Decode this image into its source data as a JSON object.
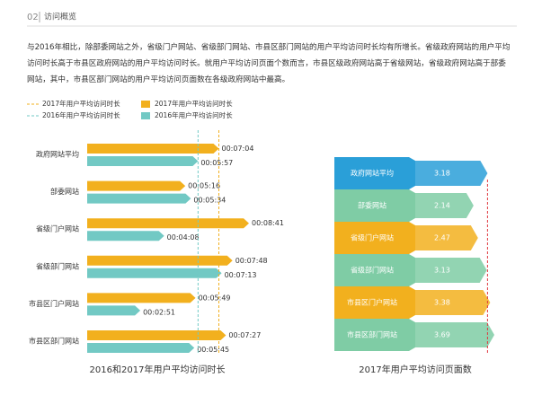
{
  "header": {
    "number": "02",
    "title": "访问概览"
  },
  "paragraph": "与2016年相比，除部委网站之外，省级门户网站、省级部门网站、市县区部门网站的用户平均访问时长均有所增长。省级政府网站的用户平均访问时长高于市县区政府网站的用户平均访问时长。就用户平均访问页面个数而言，市县区级政府网站高于省级网站，省级政府网站高于部委网站，其中，市县区部门网站的用户平均访问页面数在各级政府网站中最高。",
  "chart_data": [
    {
      "type": "hbar",
      "title": "2016和2017年用户平均访问时长",
      "categories": [
        "政府网站平均",
        "部委网站",
        "省级门户网站",
        "省级部门网站",
        "市县区门户网站",
        "市县区部门网站"
      ],
      "series": [
        {
          "name": "2017年用户平均访问时长",
          "color": "#f2b01e",
          "values": [
            424,
            316,
            521,
            468,
            349,
            447
          ],
          "value_labels": [
            "00:07:04",
            "00:05:16",
            "00:08:41",
            "00:07:48",
            "00:05:49",
            "00:07:27"
          ]
        },
        {
          "name": "2016年用户平均访问时长",
          "color": "#72c9c4",
          "values": [
            357,
            334,
            248,
            433,
            171,
            345
          ],
          "value_labels": [
            "00:05:57",
            "00:05:34",
            "00:04:08",
            "00:07:13",
            "00:02:51",
            "00:05:45"
          ]
        }
      ],
      "reference_lines": [
        {
          "name": "2017年用户平均访问时长",
          "color": "#f2b01e"
        },
        {
          "name": "2016年用户平均访问时长",
          "color": "#72c9c4"
        }
      ]
    },
    {
      "type": "ribbon",
      "title": "2017年用户平均访问页面数",
      "categories": [
        "政府网站平均",
        "部委网站",
        "省级门户网站",
        "省级部门网站",
        "市县区门户网站",
        "市县区部门网站"
      ],
      "values": [
        3.18,
        2.14,
        2.47,
        3.13,
        3.38,
        3.69
      ],
      "colors": [
        "#2a9fd8",
        "#7fcca5",
        "#f2b01e",
        "#7fcca5",
        "#f2b01e",
        "#7fcca5"
      ],
      "reference_color": "#e0393e"
    }
  ]
}
